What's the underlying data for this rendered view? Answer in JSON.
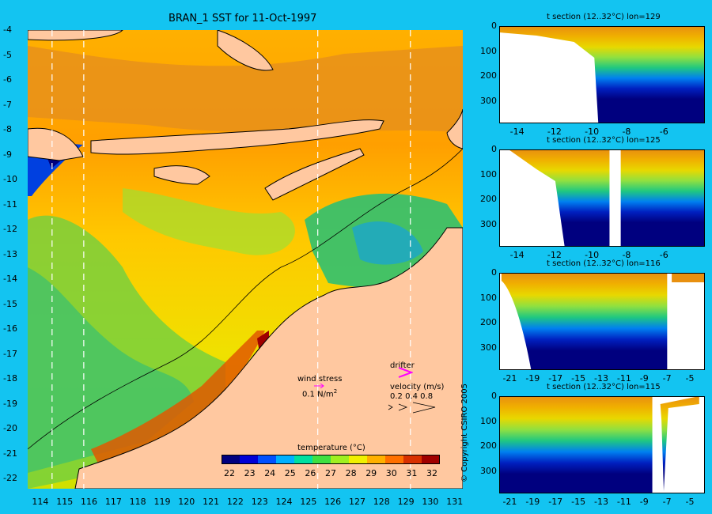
{
  "main_map": {
    "title": "BRAN_1 SST for 11-Oct-1997",
    "lon_ticks": [
      "114",
      "115",
      "116",
      "117",
      "118",
      "119",
      "120",
      "121",
      "122",
      "123",
      "124",
      "125",
      "126",
      "127",
      "128",
      "129",
      "130",
      "131"
    ],
    "lat_ticks": [
      "-4",
      "-5",
      "-6",
      "-7",
      "-8",
      "-9",
      "-10",
      "-11",
      "-12",
      "-13",
      "-14",
      "-15",
      "-16",
      "-17",
      "-18",
      "-19",
      "-20",
      "-21",
      "-22"
    ],
    "section_lines_lon": [
      114.5,
      115.8,
      125.4,
      129.2
    ],
    "legend": {
      "wind_stress_label": "wind stress",
      "wind_stress_unit": "0.1 N/m",
      "wind_stress_sup": "2",
      "drifter_label": "drifter",
      "velocity_label": "velocity (m/s)",
      "velocity_values": "0.2 0.4 0.8",
      "drifter_color": "#ff00ff"
    },
    "colorbar": {
      "title": "temperature (°C)",
      "ticks": [
        "22",
        "23",
        "24",
        "25",
        "26",
        "27",
        "28",
        "29",
        "30",
        "31",
        "32"
      ],
      "colors": [
        "#00007f",
        "#0000d6",
        "#0050ff",
        "#00b0ff",
        "#00e0a0",
        "#40e040",
        "#a0f020",
        "#f0f000",
        "#ffb000",
        "#ff7000",
        "#d83000",
        "#a00000"
      ]
    }
  },
  "copyright": "© Copyright CSIRO 2005",
  "chart_data": [
    {
      "type": "heatmap",
      "title": "t section (12..32°C) lon=129",
      "xlim": [
        -15,
        -4
      ],
      "x_ticks": [
        "-14",
        "-12",
        "-10",
        "-8",
        "-6"
      ],
      "y_ticks": [
        "0",
        "100",
        "200",
        "300"
      ],
      "ylim": [
        390,
        0
      ],
      "ocean_starts_lat": -9.7
    },
    {
      "type": "heatmap",
      "title": "t section (12..32°C) lon=125",
      "xlim": [
        -15,
        -4
      ],
      "x_ticks": [
        "-14",
        "-12",
        "-10",
        "-8",
        "-6"
      ],
      "y_ticks": [
        "0",
        "100",
        "200",
        "300"
      ],
      "ylim": [
        390,
        0
      ],
      "land_gap_lat": [
        -9.1,
        -8.5
      ]
    },
    {
      "type": "heatmap",
      "title": "t section (12..32°C) lon=116",
      "xlim": [
        -22,
        -4
      ],
      "x_ticks": [
        "-21",
        "-19",
        "-17",
        "-15",
        "-13",
        "-11",
        "-9",
        "-7",
        "-5"
      ],
      "y_ticks": [
        "0",
        "100",
        "200",
        "300"
      ],
      "ylim": [
        390,
        0
      ]
    },
    {
      "type": "heatmap",
      "title": "t section (12..32°C) lon=115",
      "xlim": [
        -22,
        -4
      ],
      "x_ticks": [
        "-21",
        "-19",
        "-17",
        "-15",
        "-13",
        "-11",
        "-9",
        "-7",
        "-5"
      ],
      "y_ticks": [
        "0",
        "100",
        "200",
        "300"
      ],
      "ylim": [
        390,
        0
      ]
    }
  ]
}
